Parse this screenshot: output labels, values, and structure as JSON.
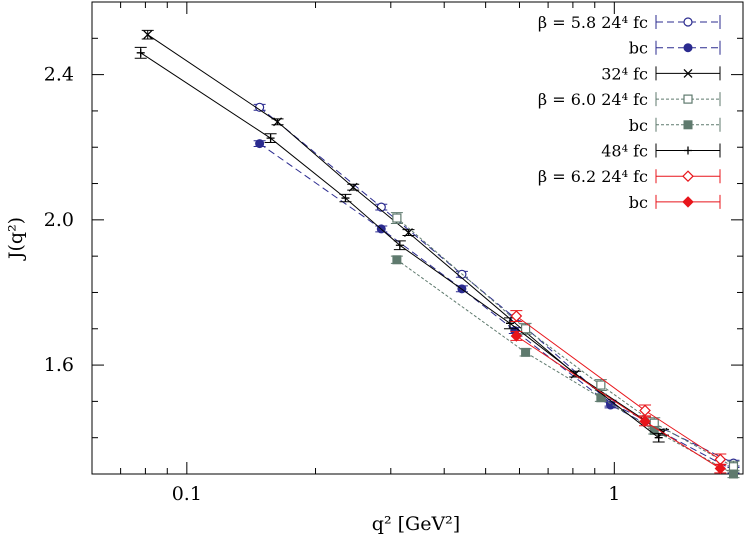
{
  "chart_data": {
    "type": "scatter",
    "xscale": "log",
    "xlim": [
      0.06,
      2.0
    ],
    "ylim": [
      1.3,
      2.6
    ],
    "xlabel": "q² [GeV²]",
    "ylabel": "J(q²)",
    "grid": false,
    "legend_position": "top-right",
    "x_ticks": [
      {
        "value": 0.1,
        "label": "0.1"
      },
      {
        "value": 1,
        "label": "1"
      }
    ],
    "y_ticks": [
      {
        "value": 1.6,
        "label": "1.6"
      },
      {
        "value": 2.0,
        "label": "2.0"
      },
      {
        "value": 2.4,
        "label": "2.4"
      }
    ],
    "series": [
      {
        "name": "β = 5.8 24⁴ fc",
        "legend_label": "β = 5.8  24⁴ fc",
        "color": "#2b2b8f",
        "marker": "circle-open",
        "line": "dashed",
        "points": [
          {
            "x": 0.148,
            "y": 2.31,
            "err": 0.008
          },
          {
            "x": 0.285,
            "y": 2.035,
            "err": 0.008
          },
          {
            "x": 0.44,
            "y": 1.85,
            "err": 0.008
          },
          {
            "x": 0.585,
            "y": 1.73,
            "err": 0.008
          },
          {
            "x": 0.98,
            "y": 1.495,
            "err": 0.008
          },
          {
            "x": 1.9,
            "y": 1.33,
            "err": 0.008
          }
        ]
      },
      {
        "name": "β = 5.8 24⁴ bc",
        "legend_label": "bc",
        "color": "#2b2b8f",
        "marker": "circle-filled",
        "line": "dashed",
        "points": [
          {
            "x": 0.148,
            "y": 2.21,
            "err": 0.008
          },
          {
            "x": 0.285,
            "y": 1.975,
            "err": 0.008
          },
          {
            "x": 0.44,
            "y": 1.81,
            "err": 0.008
          },
          {
            "x": 0.585,
            "y": 1.695,
            "err": 0.008
          },
          {
            "x": 0.98,
            "y": 1.49,
            "err": 0.008
          },
          {
            "x": 1.9,
            "y": 1.31,
            "err": 0.008
          }
        ]
      },
      {
        "name": "32⁴ fc",
        "legend_label": "32⁴ fc",
        "color": "#000000",
        "marker": "cross",
        "line": "solid",
        "points": [
          {
            "x": 0.081,
            "y": 2.51,
            "err": 0.012
          },
          {
            "x": 0.163,
            "y": 2.27,
            "err": 0.008
          },
          {
            "x": 0.245,
            "y": 2.09,
            "err": 0.008
          },
          {
            "x": 0.33,
            "y": 1.965,
            "err": 0.008
          },
          {
            "x": 0.81,
            "y": 1.575,
            "err": 0.008
          },
          {
            "x": 1.3,
            "y": 1.415,
            "err": 0.008
          }
        ]
      },
      {
        "name": "β = 6.0 24⁴ fc",
        "legend_label": "β = 6.0  24⁴ fc",
        "color": "#5f7a6e",
        "marker": "square-open",
        "line": "dotted",
        "points": [
          {
            "x": 0.31,
            "y": 2.005,
            "err": 0.015
          },
          {
            "x": 0.62,
            "y": 1.7,
            "err": 0.015
          },
          {
            "x": 0.93,
            "y": 1.545,
            "err": 0.015
          },
          {
            "x": 1.24,
            "y": 1.44,
            "err": 0.015
          },
          {
            "x": 1.9,
            "y": 1.32,
            "err": 0.015
          }
        ]
      },
      {
        "name": "β = 6.0 24⁴ bc",
        "legend_label": "bc",
        "color": "#5f7a6e",
        "marker": "square-filled",
        "line": "dotted",
        "points": [
          {
            "x": 0.31,
            "y": 1.89,
            "err": 0.01
          },
          {
            "x": 0.62,
            "y": 1.635,
            "err": 0.01
          },
          {
            "x": 0.93,
            "y": 1.51,
            "err": 0.01
          },
          {
            "x": 1.24,
            "y": 1.42,
            "err": 0.01
          },
          {
            "x": 1.9,
            "y": 1.3,
            "err": 0.01
          }
        ]
      },
      {
        "name": "48⁴ fc",
        "legend_label": "48⁴ fc",
        "color": "#000000",
        "marker": "plus",
        "line": "solid",
        "points": [
          {
            "x": 0.078,
            "y": 2.46,
            "err": 0.015
          },
          {
            "x": 0.157,
            "y": 2.225,
            "err": 0.012
          },
          {
            "x": 0.235,
            "y": 2.06,
            "err": 0.01
          },
          {
            "x": 0.315,
            "y": 1.93,
            "err": 0.012
          },
          {
            "x": 0.57,
            "y": 1.715,
            "err": 0.015
          },
          {
            "x": 1.27,
            "y": 1.4,
            "err": 0.012
          }
        ]
      },
      {
        "name": "β = 6.2 24⁴ fc",
        "legend_label": "β = 6.2  24⁴ fc",
        "color": "#e8151b",
        "marker": "diamond-open",
        "line": "solid",
        "points": [
          {
            "x": 0.59,
            "y": 1.735,
            "err": 0.015
          },
          {
            "x": 1.18,
            "y": 1.475,
            "err": 0.015
          },
          {
            "x": 1.77,
            "y": 1.34,
            "err": 0.015
          }
        ]
      },
      {
        "name": "β = 6.2 24⁴ bc",
        "legend_label": "bc",
        "color": "#e8151b",
        "marker": "diamond-filled",
        "line": "solid",
        "points": [
          {
            "x": 0.59,
            "y": 1.68,
            "err": 0.012
          },
          {
            "x": 1.18,
            "y": 1.445,
            "err": 0.012
          },
          {
            "x": 1.77,
            "y": 1.315,
            "err": 0.012
          }
        ]
      }
    ]
  }
}
